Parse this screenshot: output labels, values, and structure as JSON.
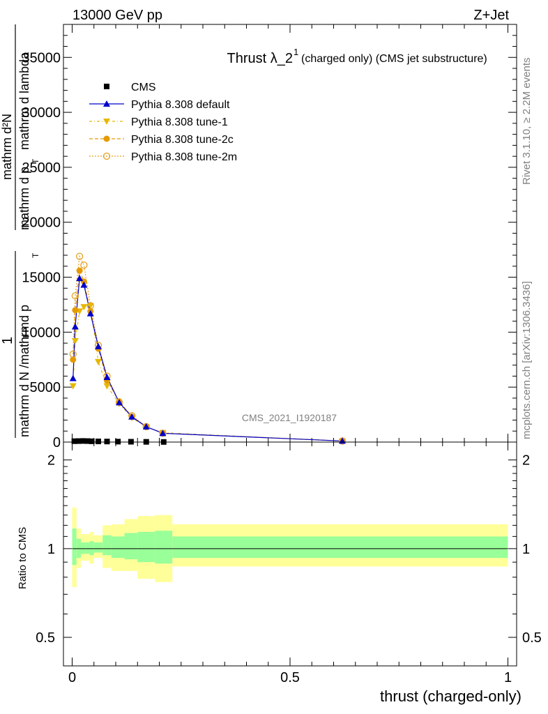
{
  "header": {
    "energy_label": "13000 GeV pp",
    "process_label": "Z+Jet"
  },
  "side_labels": {
    "rivet": "Rivet 3.1.10, ≥ 2.2M events",
    "mcplots": "mcplots.cern.ch [arXiv:1306.3436]"
  },
  "chart_data": [
    {
      "type": "line",
      "title_main": "Thrust λ_2",
      "title_sup": "1",
      "title_suffix": "(charged only) (CMS jet substructure)",
      "watermark": "CMS_2021_I1920187",
      "ylabel_parts": [
        "1",
        "mathrm d N /mathrmd p",
        "T",
        "mathrm d²N",
        "mathrm d p",
        "T",
        "mathrm d lambda"
      ],
      "xlim": [
        -0.02,
        1.02
      ],
      "ylim": [
        0,
        38000
      ],
      "yticks": [
        0,
        5000,
        10000,
        15000,
        20000,
        25000,
        30000,
        35000
      ],
      "ytick_labels": [
        "0",
        "5000",
        "10000",
        "15000",
        "20000",
        "25000",
        "30000",
        "35000"
      ],
      "legend_position": "top-left",
      "series": [
        {
          "name": "CMS",
          "color": "#000000",
          "marker": "square",
          "x": [
            0.005,
            0.015,
            0.025,
            0.035,
            0.045,
            0.06,
            0.08,
            0.105,
            0.135,
            0.17,
            0.21
          ],
          "y": [
            80,
            90,
            100,
            90,
            70,
            60,
            50,
            40,
            30,
            20,
            10
          ]
        },
        {
          "name": "Pythia 8.308 default",
          "color": "#0000cc",
          "marker": "triangle-up",
          "dash": "solid",
          "x": [
            0.002,
            0.007,
            0.017,
            0.027,
            0.042,
            0.06,
            0.08,
            0.108,
            0.137,
            0.17,
            0.208,
            0.62
          ],
          "y": [
            5800,
            10500,
            14900,
            14300,
            11700,
            8700,
            5900,
            3600,
            2300,
            1400,
            800,
            100
          ]
        },
        {
          "name": "Pythia 8.308 tune-1",
          "color": "#e6b800",
          "marker": "triangle-down",
          "dash": "4,3,1,3",
          "x": [
            0.002,
            0.007,
            0.017,
            0.027,
            0.042,
            0.06,
            0.08,
            0.108,
            0.137,
            0.17,
            0.208,
            0.62
          ],
          "y": [
            5100,
            9200,
            11900,
            12300,
            12400,
            7300,
            5100,
            3500,
            2200,
            1400,
            850,
            90
          ]
        },
        {
          "name": "Pythia 8.308 tune-2c",
          "color": "#e69a00",
          "marker": "circle",
          "dash": "5,3",
          "x": [
            0.002,
            0.007,
            0.017,
            0.027,
            0.042,
            0.06,
            0.08,
            0.108,
            0.137,
            0.17,
            0.208,
            0.62
          ],
          "y": [
            7500,
            12000,
            15600,
            14600,
            11900,
            8500,
            5600,
            3700,
            2300,
            1400,
            800,
            100
          ]
        },
        {
          "name": "Pythia 8.308 tune-2m",
          "color": "#e6a020",
          "marker": "circle-open",
          "dash": "2,2",
          "x": [
            0.002,
            0.007,
            0.017,
            0.027,
            0.042,
            0.06,
            0.08,
            0.108,
            0.137,
            0.17,
            0.208,
            0.62
          ],
          "y": [
            8000,
            13300,
            16900,
            16100,
            12400,
            8800,
            6000,
            3600,
            2400,
            1400,
            800,
            100
          ]
        }
      ]
    },
    {
      "type": "area",
      "ylabel": "Ratio to CMS",
      "xlabel": "thrust (charged-only)",
      "xlim": [
        -0.02,
        1.02
      ],
      "ylim": [
        0.4,
        2.3
      ],
      "yticks": [
        0.5,
        1,
        2
      ],
      "ytick_labels": [
        "0.5",
        "1",
        "2"
      ],
      "xticks": [
        0,
        0.5,
        1
      ],
      "xtick_labels": [
        "0",
        "0.5",
        "1"
      ],
      "reference_line": 1,
      "bins": [
        0,
        0.01,
        0.02,
        0.03,
        0.04,
        0.05,
        0.07,
        0.09,
        0.12,
        0.15,
        0.19,
        0.23,
        1.0
      ],
      "band_inner_low": [
        0.88,
        0.93,
        0.96,
        0.96,
        0.95,
        0.97,
        0.95,
        0.93,
        0.92,
        0.9,
        0.89,
        0.93
      ],
      "band_inner_high": [
        1.17,
        1.08,
        1.05,
        1.05,
        1.06,
        1.05,
        1.11,
        1.1,
        1.13,
        1.14,
        1.15,
        1.1
      ],
      "band_outer_low": [
        0.74,
        0.86,
        0.91,
        0.91,
        0.89,
        0.93,
        0.86,
        0.84,
        0.84,
        0.79,
        0.77,
        0.87
      ],
      "band_outer_high": [
        1.38,
        1.17,
        1.12,
        1.12,
        1.14,
        1.11,
        1.2,
        1.21,
        1.26,
        1.29,
        1.3,
        1.21
      ],
      "inner_color": "#99ff99",
      "outer_color": "#ffff99"
    }
  ]
}
